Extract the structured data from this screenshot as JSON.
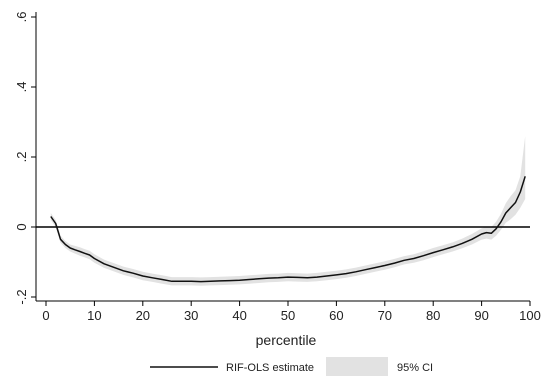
{
  "chart_data": {
    "type": "line",
    "title": "",
    "xlabel": "percentile",
    "ylabel": "",
    "xlim": [
      0,
      100
    ],
    "ylim": [
      -0.2,
      0.6
    ],
    "grid": false,
    "legend_position": "bottom",
    "x_ticks": [
      0,
      10,
      20,
      30,
      40,
      50,
      60,
      70,
      80,
      90,
      100
    ],
    "x_tick_labels": [
      "0",
      "10",
      "20",
      "30",
      "40",
      "50",
      "60",
      "70",
      "80",
      "90",
      "100"
    ],
    "y_ticks": [
      -0.2,
      0,
      0.2,
      0.4,
      0.6
    ],
    "y_tick_labels": [
      "-.2",
      "0",
      ".2",
      ".4",
      ".6"
    ],
    "reference_line_y": 0,
    "series": [
      {
        "name": "RIF-OLS estimate",
        "color": "#111111",
        "x": [
          1,
          2,
          3,
          4,
          5,
          6,
          7,
          8,
          9,
          10,
          12,
          14,
          16,
          18,
          20,
          22,
          24,
          26,
          28,
          30,
          32,
          34,
          36,
          38,
          40,
          42,
          44,
          46,
          48,
          50,
          52,
          54,
          56,
          58,
          60,
          62,
          64,
          66,
          68,
          70,
          72,
          74,
          76,
          78,
          80,
          82,
          84,
          86,
          88,
          90,
          91,
          92,
          93,
          94,
          95,
          96,
          97,
          98,
          99
        ],
        "y": [
          0.03,
          0.01,
          -0.035,
          -0.05,
          -0.06,
          -0.065,
          -0.07,
          -0.075,
          -0.08,
          -0.09,
          -0.105,
          -0.115,
          -0.125,
          -0.132,
          -0.14,
          -0.145,
          -0.15,
          -0.155,
          -0.155,
          -0.155,
          -0.156,
          -0.155,
          -0.154,
          -0.153,
          -0.152,
          -0.15,
          -0.148,
          -0.146,
          -0.145,
          -0.143,
          -0.144,
          -0.145,
          -0.143,
          -0.14,
          -0.137,
          -0.133,
          -0.128,
          -0.122,
          -0.116,
          -0.11,
          -0.103,
          -0.095,
          -0.09,
          -0.082,
          -0.073,
          -0.065,
          -0.057,
          -0.047,
          -0.035,
          -0.02,
          -0.016,
          -0.018,
          -0.005,
          0.015,
          0.04,
          0.055,
          0.07,
          0.1,
          0.145
        ]
      },
      {
        "name": "95% CI",
        "color": "#e2e2e2",
        "x": [
          1,
          2,
          3,
          4,
          5,
          6,
          7,
          8,
          9,
          10,
          12,
          14,
          16,
          18,
          20,
          22,
          24,
          26,
          28,
          30,
          32,
          34,
          36,
          38,
          40,
          42,
          44,
          46,
          48,
          50,
          52,
          54,
          56,
          58,
          60,
          62,
          64,
          66,
          68,
          70,
          72,
          74,
          76,
          78,
          80,
          82,
          84,
          86,
          88,
          90,
          91,
          92,
          93,
          94,
          95,
          96,
          97,
          98,
          99
        ],
        "lower": [
          0.02,
          0.0,
          -0.045,
          -0.06,
          -0.07,
          -0.076,
          -0.082,
          -0.087,
          -0.092,
          -0.102,
          -0.117,
          -0.127,
          -0.137,
          -0.144,
          -0.152,
          -0.157,
          -0.162,
          -0.167,
          -0.167,
          -0.167,
          -0.168,
          -0.167,
          -0.166,
          -0.165,
          -0.164,
          -0.162,
          -0.16,
          -0.158,
          -0.157,
          -0.155,
          -0.156,
          -0.157,
          -0.155,
          -0.152,
          -0.149,
          -0.145,
          -0.14,
          -0.134,
          -0.128,
          -0.122,
          -0.115,
          -0.107,
          -0.102,
          -0.095,
          -0.086,
          -0.078,
          -0.07,
          -0.061,
          -0.05,
          -0.036,
          -0.033,
          -0.036,
          -0.025,
          -0.008,
          0.012,
          0.022,
          0.035,
          0.055,
          0.08
        ],
        "upper": [
          0.04,
          0.02,
          -0.025,
          -0.04,
          -0.05,
          -0.054,
          -0.058,
          -0.063,
          -0.068,
          -0.078,
          -0.093,
          -0.103,
          -0.113,
          -0.12,
          -0.128,
          -0.133,
          -0.138,
          -0.143,
          -0.143,
          -0.143,
          -0.144,
          -0.143,
          -0.142,
          -0.141,
          -0.14,
          -0.138,
          -0.136,
          -0.134,
          -0.133,
          -0.131,
          -0.132,
          -0.133,
          -0.131,
          -0.128,
          -0.125,
          -0.121,
          -0.116,
          -0.11,
          -0.104,
          -0.098,
          -0.091,
          -0.083,
          -0.078,
          -0.069,
          -0.06,
          -0.052,
          -0.044,
          -0.033,
          -0.02,
          -0.004,
          0.001,
          0.0,
          0.015,
          0.038,
          0.068,
          0.088,
          0.105,
          0.145,
          0.26
        ]
      }
    ]
  }
}
